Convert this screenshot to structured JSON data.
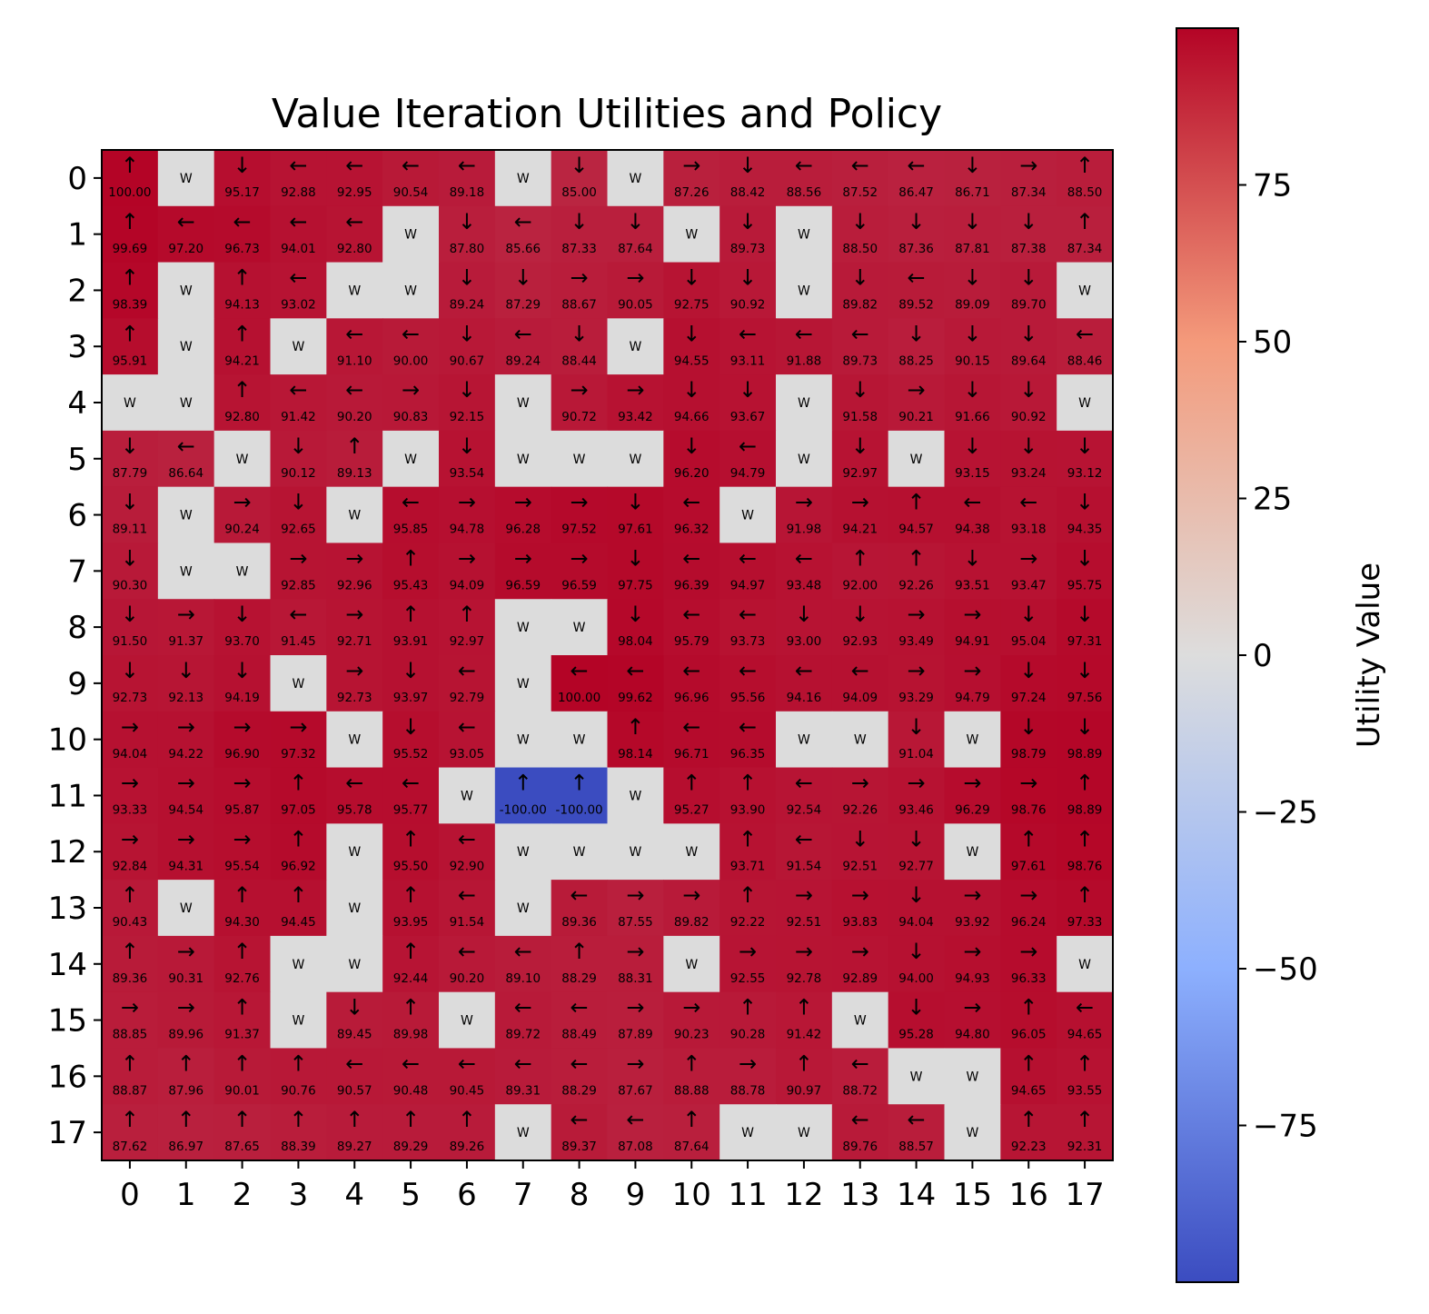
{
  "chart_data": {
    "type": "heatmap",
    "title": "Value Iteration Utilities and Policy",
    "x_ticks": [
      "0",
      "1",
      "2",
      "3",
      "4",
      "5",
      "6",
      "7",
      "8",
      "9",
      "10",
      "11",
      "12",
      "13",
      "14",
      "15",
      "16",
      "17"
    ],
    "y_ticks": [
      "0",
      "1",
      "2",
      "3",
      "4",
      "5",
      "6",
      "7",
      "8",
      "9",
      "10",
      "11",
      "12",
      "13",
      "14",
      "15",
      "16",
      "17"
    ],
    "wall_label": "W",
    "colorbar": {
      "label": "Utility Value",
      "range": [
        -100,
        100
      ],
      "ticks": [
        "75",
        "50",
        "25",
        "0",
        "−25",
        "−50",
        "−75"
      ],
      "tick_values": [
        75,
        50,
        25,
        0,
        -25,
        -50,
        -75
      ],
      "colormap": "coolwarm",
      "colormap_stops": [
        "#3b4cc0",
        "#dddddd",
        "#b40426"
      ]
    },
    "wall_color": "#dcdcdc",
    "rows": [
      [
        "↑ 100.00",
        "W",
        "↓ 95.17",
        "← 92.88",
        "← 92.95",
        "← 90.54",
        "← 89.18",
        "W",
        "↓ 85.00",
        "W",
        "→ 87.26",
        "↓ 88.42",
        "← 88.56",
        "← 87.52",
        "← 86.47",
        "↓ 86.71",
        "→ 87.34",
        "↑ 88.50"
      ],
      [
        "↑ 99.69",
        "← 97.20",
        "← 96.73",
        "← 94.01",
        "← 92.80",
        "W",
        "↓ 87.80",
        "← 85.66",
        "↓ 87.33",
        "↓ 87.64",
        "W",
        "↓ 89.73",
        "W",
        "↓ 88.50",
        "↓ 87.36",
        "↓ 87.81",
        "↓ 87.38",
        "↑ 87.34"
      ],
      [
        "↑ 98.39",
        "W",
        "↑ 94.13",
        "← 93.02",
        "W",
        "W",
        "↓ 89.24",
        "↓ 87.29",
        "→ 88.67",
        "→ 90.05",
        "↓ 92.75",
        "↓ 90.92",
        "W",
        "↓ 89.82",
        "← 89.52",
        "↓ 89.09",
        "↓ 89.70",
        "W"
      ],
      [
        "↑ 95.91",
        "W",
        "↑ 94.21",
        "W",
        "← 91.10",
        "← 90.00",
        "↓ 90.67",
        "← 89.24",
        "↓ 88.44",
        "W",
        "↓ 94.55",
        "← 93.11",
        "← 91.88",
        "← 89.73",
        "↓ 88.25",
        "↓ 90.15",
        "↓ 89.64",
        "← 88.46"
      ],
      [
        "W",
        "W",
        "↑ 92.80",
        "← 91.42",
        "← 90.20",
        "→ 90.83",
        "↓ 92.15",
        "W",
        "→ 90.72",
        "→ 93.42",
        "↓ 94.66",
        "↓ 93.67",
        "W",
        "↓ 91.58",
        "→ 90.21",
        "↓ 91.66",
        "↓ 90.92",
        "W"
      ],
      [
        "↓ 87.79",
        "← 86.64",
        "W",
        "↓ 90.12",
        "↑ 89.13",
        "W",
        "↓ 93.54",
        "W",
        "W",
        "W",
        "↓ 96.20",
        "← 94.79",
        "W",
        "↓ 92.97",
        "W",
        "↓ 93.15",
        "↓ 93.24",
        "↓ 93.12"
      ],
      [
        "↓ 89.11",
        "W",
        "→ 90.24",
        "↓ 92.65",
        "W",
        "← 95.85",
        "→ 94.78",
        "→ 96.28",
        "→ 97.52",
        "↓ 97.61",
        "← 96.32",
        "W",
        "→ 91.98",
        "→ 94.21",
        "↑ 94.57",
        "← 94.38",
        "← 93.18",
        "↓ 94.35"
      ],
      [
        "↓ 90.30",
        "W",
        "W",
        "→ 92.85",
        "→ 92.96",
        "↑ 95.43",
        "→ 94.09",
        "→ 96.59",
        "→ 96.59",
        "↓ 97.75",
        "← 96.39",
        "← 94.97",
        "← 93.48",
        "↑ 92.00",
        "↑ 92.26",
        "↓ 93.51",
        "→ 93.47",
        "↓ 95.75"
      ],
      [
        "↓ 91.50",
        "→ 91.37",
        "↓ 93.70",
        "← 91.45",
        "→ 92.71",
        "↑ 93.91",
        "↑ 92.97",
        "W",
        "W",
        "↓ 98.04",
        "← 95.79",
        "← 93.73",
        "↓ 93.00",
        "↓ 92.93",
        "→ 93.49",
        "→ 94.91",
        "↓ 95.04",
        "↓ 97.31"
      ],
      [
        "↓ 92.73",
        "↓ 92.13",
        "↓ 94.19",
        "W",
        "→ 92.73",
        "↓ 93.97",
        "← 92.79",
        "W",
        "← 100.00",
        "← 99.62",
        "← 96.96",
        "← 95.56",
        "← 94.16",
        "← 94.09",
        "→ 93.29",
        "→ 94.79",
        "↓ 97.24",
        "↓ 97.56"
      ],
      [
        "→ 94.04",
        "→ 94.22",
        "→ 96.90",
        "→ 97.32",
        "W",
        "↓ 95.52",
        "← 93.05",
        "W",
        "W",
        "↑ 98.14",
        "← 96.71",
        "← 96.35",
        "W",
        "W",
        "↓ 91.04",
        "W",
        "↓ 98.79",
        "↓ 98.89"
      ],
      [
        "→ 93.33",
        "→ 94.54",
        "→ 95.87",
        "↑ 97.05",
        "← 95.78",
        "← 95.77",
        "W",
        "↑ -100.00",
        "↑ -100.00",
        "W",
        "↑ 95.27",
        "↑ 93.90",
        "← 92.54",
        "→ 92.26",
        "→ 93.46",
        "→ 96.29",
        "→ 98.76",
        "↑ 98.89"
      ],
      [
        "→ 92.84",
        "→ 94.31",
        "→ 95.54",
        "↑ 96.92",
        "W",
        "↑ 95.50",
        "← 92.90",
        "W",
        "W",
        "W",
        "W",
        "↑ 93.71",
        "← 91.54",
        "↓ 92.51",
        "↓ 92.77",
        "W",
        "↑ 97.61",
        "↑ 98.76"
      ],
      [
        "↑ 90.43",
        "W",
        "↑ 94.30",
        "↑ 94.45",
        "W",
        "↑ 93.95",
        "← 91.54",
        "W",
        "← 89.36",
        "→ 87.55",
        "→ 89.82",
        "↑ 92.22",
        "→ 92.51",
        "→ 93.83",
        "↓ 94.04",
        "→ 93.92",
        "→ 96.24",
        "↑ 97.33"
      ],
      [
        "↑ 89.36",
        "→ 90.31",
        "↑ 92.76",
        "W",
        "W",
        "↑ 92.44",
        "← 90.20",
        "← 89.10",
        "↑ 88.29",
        "→ 88.31",
        "W",
        "→ 92.55",
        "→ 92.78",
        "→ 92.89",
        "↓ 94.00",
        "→ 94.93",
        "→ 96.33",
        "W"
      ],
      [
        "→ 88.85",
        "→ 89.96",
        "↑ 91.37",
        "W",
        "↓ 89.45",
        "↑ 89.98",
        "W",
        "← 89.72",
        "← 88.49",
        "→ 87.89",
        "→ 90.23",
        "↑ 90.28",
        "↑ 91.42",
        "W",
        "↓ 95.28",
        "→ 94.80",
        "↑ 96.05",
        "← 94.65"
      ],
      [
        "↑ 88.87",
        "↑ 87.96",
        "↑ 90.01",
        "↑ 90.76",
        "← 90.57",
        "← 90.48",
        "← 90.45",
        "← 89.31",
        "← 88.29",
        "→ 87.67",
        "↑ 88.88",
        "→ 88.78",
        "↑ 90.97",
        "← 88.72",
        "W",
        "W",
        "↑ 94.65",
        "↑ 93.55"
      ],
      [
        "↑ 87.62",
        "↑ 86.97",
        "↑ 87.65",
        "↑ 88.39",
        "↑ 89.27",
        "↑ 89.29",
        "↑ 89.26",
        "W",
        "← 89.37",
        "← 87.08",
        "↑ 87.64",
        "W",
        "W",
        "← 89.76",
        "← 88.57",
        "W",
        "↑ 92.23",
        "↑ 92.31"
      ]
    ]
  }
}
